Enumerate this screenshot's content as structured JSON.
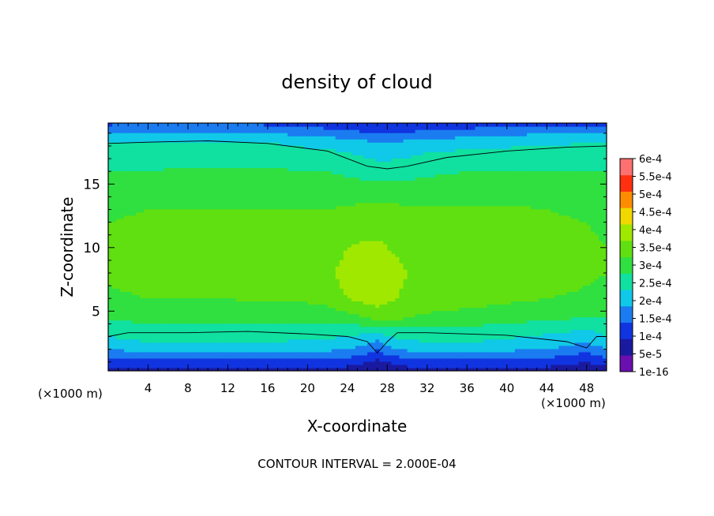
{
  "chart_data": {
    "type": "heatmap",
    "title": "density of cloud",
    "xlabel": "X-coordinate",
    "ylabel": "Z-coordinate",
    "x_unit": "(×1000 m)",
    "y_unit": "(×1000 m)",
    "xlim": [
      0,
      50
    ],
    "ylim": [
      0.3,
      19.8
    ],
    "x_ticks": [
      4,
      8,
      12,
      16,
      20,
      24,
      28,
      32,
      36,
      40,
      44,
      48
    ],
    "y_ticks": [
      5,
      10,
      15
    ],
    "footer": "CONTOUR INTERVAL = 2.000E-04",
    "colorbar": {
      "levels": [
        "1e-16",
        "5e-5",
        "1e-4",
        "1.5e-4",
        "2e-4",
        "2.5e-4",
        "3e-4",
        "3.5e-4",
        "4e-4",
        "4.5e-4",
        "5e-4",
        "5.5e-4",
        "6e-4"
      ],
      "level_values": [
        1e-16,
        5e-05,
        0.0001,
        0.00015,
        0.0002,
        0.00025,
        0.0003,
        0.00035,
        0.0004,
        0.00045,
        0.0005,
        0.00055,
        0.0006
      ],
      "colors": [
        "#6a0fb0",
        "#1a1aa0",
        "#1034e0",
        "#1a7cf0",
        "#10c8e8",
        "#10e0a0",
        "#30e040",
        "#60e010",
        "#a0e800",
        "#f0d800",
        "#ff8c00",
        "#ff3010",
        "#ff7070",
        "#ffb0b0"
      ]
    },
    "contour_lines": [
      {
        "level": 0.0002,
        "points": [
          [
            0,
            18.2
          ],
          [
            4,
            18.3
          ],
          [
            10,
            18.4
          ],
          [
            16,
            18.2
          ],
          [
            22,
            17.6
          ],
          [
            26,
            16.4
          ],
          [
            28,
            16.2
          ],
          [
            30,
            16.4
          ],
          [
            34,
            17.1
          ],
          [
            40,
            17.6
          ],
          [
            46,
            17.9
          ],
          [
            50,
            18.0
          ]
        ]
      },
      {
        "level": 0.0002,
        "points": [
          [
            0,
            3.0
          ],
          [
            2,
            3.3
          ],
          [
            8,
            3.3
          ],
          [
            14,
            3.4
          ],
          [
            20,
            3.2
          ],
          [
            24,
            3.0
          ],
          [
            26,
            2.6
          ],
          [
            27,
            1.7
          ],
          [
            28,
            2.6
          ],
          [
            29,
            3.3
          ],
          [
            32,
            3.3
          ],
          [
            40,
            3.1
          ],
          [
            46,
            2.6
          ],
          [
            48,
            2.1
          ],
          [
            49,
            3.0
          ],
          [
            50,
            3.0
          ]
        ]
      }
    ],
    "field": {
      "x": [
        0,
        4,
        8,
        12,
        16,
        20,
        22,
        24,
        26,
        27,
        28,
        30,
        32,
        36,
        40,
        44,
        48,
        50
      ],
      "z": [
        0.3,
        1.0,
        1.6,
        2.2,
        2.8,
        3.4,
        4.5,
        6,
        8,
        10,
        12,
        14,
        16,
        17.5,
        18.3,
        19,
        19.8
      ],
      "values": [
        [
          3e-05,
          3e-05,
          3e-05,
          3e-05,
          3e-05,
          3e-05,
          3e-05,
          3e-05,
          2e-05,
          1e-05,
          2e-05,
          3e-05,
          3e-05,
          3e-05,
          3e-05,
          3e-05,
          2e-05,
          3e-05
        ],
        [
          7e-05,
          8e-05,
          8e-05,
          8e-05,
          8e-05,
          8e-05,
          8e-05,
          7e-05,
          5e-05,
          3e-05,
          5e-05,
          7e-05,
          8e-05,
          8e-05,
          8e-05,
          7e-05,
          5e-05,
          7e-05
        ],
        [
          0.00012,
          0.00014,
          0.00014,
          0.00014,
          0.00014,
          0.00014,
          0.00013,
          0.00012,
          0.0001,
          7e-05,
          0.0001,
          0.00013,
          0.00014,
          0.00014,
          0.00013,
          0.00012,
          9e-05,
          0.00012
        ],
        [
          0.00016,
          0.00018,
          0.00018,
          0.00018,
          0.00018,
          0.00018,
          0.00017,
          0.00016,
          0.00014,
          0.00011,
          0.00015,
          0.00017,
          0.00018,
          0.00018,
          0.00017,
          0.00016,
          0.00013,
          0.00016
        ],
        [
          0.00019,
          0.00021,
          0.00021,
          0.00021,
          0.00021,
          0.0002,
          0.0002,
          0.00019,
          0.00018,
          0.00016,
          0.00019,
          0.0002,
          0.00021,
          0.00021,
          0.0002,
          0.00018,
          0.00016,
          0.00019
        ],
        [
          0.00022,
          0.00023,
          0.00023,
          0.00023,
          0.00023,
          0.00023,
          0.00022,
          0.00021,
          0.00021,
          0.00021,
          0.00022,
          0.00023,
          0.00023,
          0.00023,
          0.00022,
          0.00021,
          0.00019,
          0.00021
        ],
        [
          0.00026,
          0.00026,
          0.00026,
          0.00026,
          0.00026,
          0.00026,
          0.00027,
          0.00028,
          0.0003,
          0.00032,
          0.00032,
          0.0003,
          0.00029,
          0.00028,
          0.00027,
          0.00026,
          0.00025,
          0.00025
        ],
        [
          0.00029,
          0.0003,
          0.0003,
          0.0003,
          0.00031,
          0.00031,
          0.00032,
          0.00035,
          0.00037,
          0.00037,
          0.00036,
          0.00034,
          0.00033,
          0.00032,
          0.00031,
          0.0003,
          0.00029,
          0.00028
        ],
        [
          0.00031,
          0.00032,
          0.00032,
          0.00033,
          0.00033,
          0.00033,
          0.00034,
          0.00037,
          0.00038,
          0.00038,
          0.00037,
          0.00035,
          0.00034,
          0.00034,
          0.00035,
          0.00033,
          0.00031,
          0.0003
        ],
        [
          0.00031,
          0.00032,
          0.00032,
          0.00033,
          0.00033,
          0.00032,
          0.00032,
          0.00035,
          0.00036,
          0.00036,
          0.00035,
          0.00034,
          0.00034,
          0.00034,
          0.00034,
          0.00033,
          0.00031,
          0.0003
        ],
        [
          0.0003,
          0.00031,
          0.00031,
          0.00031,
          0.00031,
          0.00031,
          0.00031,
          0.00032,
          0.00033,
          0.00033,
          0.00033,
          0.00032,
          0.00032,
          0.00032,
          0.00032,
          0.00031,
          0.0003,
          0.00029
        ],
        [
          0.00028,
          0.00029,
          0.00029,
          0.00029,
          0.00029,
          0.00029,
          0.00029,
          0.00029,
          0.00029,
          0.00029,
          0.00029,
          0.00029,
          0.00029,
          0.00029,
          0.00029,
          0.00029,
          0.00028,
          0.00028
        ],
        [
          0.00025,
          0.00025,
          0.00026,
          0.00026,
          0.00026,
          0.00025,
          0.00025,
          0.00024,
          0.00023,
          0.00023,
          0.00023,
          0.00023,
          0.00024,
          0.00025,
          0.00025,
          0.00025,
          0.00025,
          0.00025
        ],
        [
          0.00022,
          0.00022,
          0.00022,
          0.00022,
          0.00022,
          0.00021,
          0.00021,
          0.0002,
          0.00019,
          0.00018,
          0.00018,
          0.00019,
          0.0002,
          0.00021,
          0.00021,
          0.00022,
          0.00022,
          0.00022
        ],
        [
          0.0002,
          0.0002,
          0.0002,
          0.0002,
          0.0002,
          0.00019,
          0.00018,
          0.00017,
          0.00016,
          0.00015,
          0.00015,
          0.00016,
          0.00017,
          0.00018,
          0.00019,
          0.00019,
          0.0002,
          0.0002
        ],
        [
          0.00015,
          0.00016,
          0.00016,
          0.00016,
          0.00015,
          0.00014,
          0.00013,
          0.00012,
          0.00011,
          0.0001,
          0.0001,
          0.00011,
          0.00012,
          0.00013,
          0.00014,
          0.00015,
          0.00015,
          0.00015
        ],
        [
          9e-05,
          0.0001,
          0.0001,
          0.0001,
          9e-05,
          8e-05,
          7e-05,
          6e-05,
          5e-05,
          5e-05,
          5e-05,
          5e-05,
          6e-05,
          7e-05,
          8e-05,
          9e-05,
          9e-05,
          9e-05
        ]
      ]
    }
  }
}
